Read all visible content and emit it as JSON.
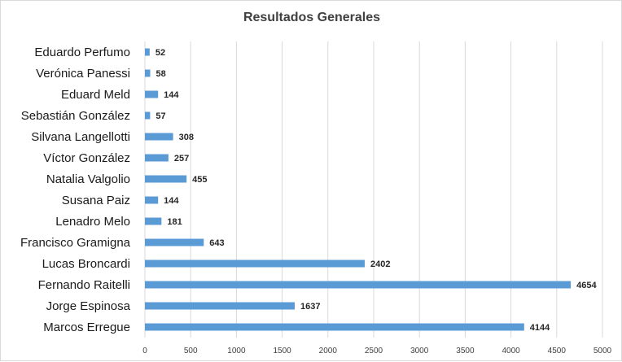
{
  "chart_data": {
    "type": "bar",
    "orientation": "horizontal",
    "title": "Resultados Generales",
    "categories": [
      "Eduardo Perfumo",
      "Verónica Panessi",
      "Eduard Meld",
      "Sebastián González",
      "Silvana Langellotti",
      "Víctor González",
      "Natalia Valgolio",
      "Susana Paiz",
      "Lenadro Melo",
      "Francisco Gramigna",
      "Lucas Broncardi",
      "Fernando Raitelli",
      "Jorge Espinosa",
      "Marcos Erregue"
    ],
    "values": [
      52,
      58,
      144,
      57,
      308,
      257,
      455,
      144,
      181,
      643,
      2402,
      4654,
      1637,
      4144
    ],
    "xlim": [
      0,
      5000
    ],
    "xticks": [
      0,
      500,
      1000,
      1500,
      2000,
      2500,
      3000,
      3500,
      4000,
      4500,
      5000
    ],
    "grid": true,
    "data_labels": true,
    "bar_color": "#5b9bd5"
  }
}
